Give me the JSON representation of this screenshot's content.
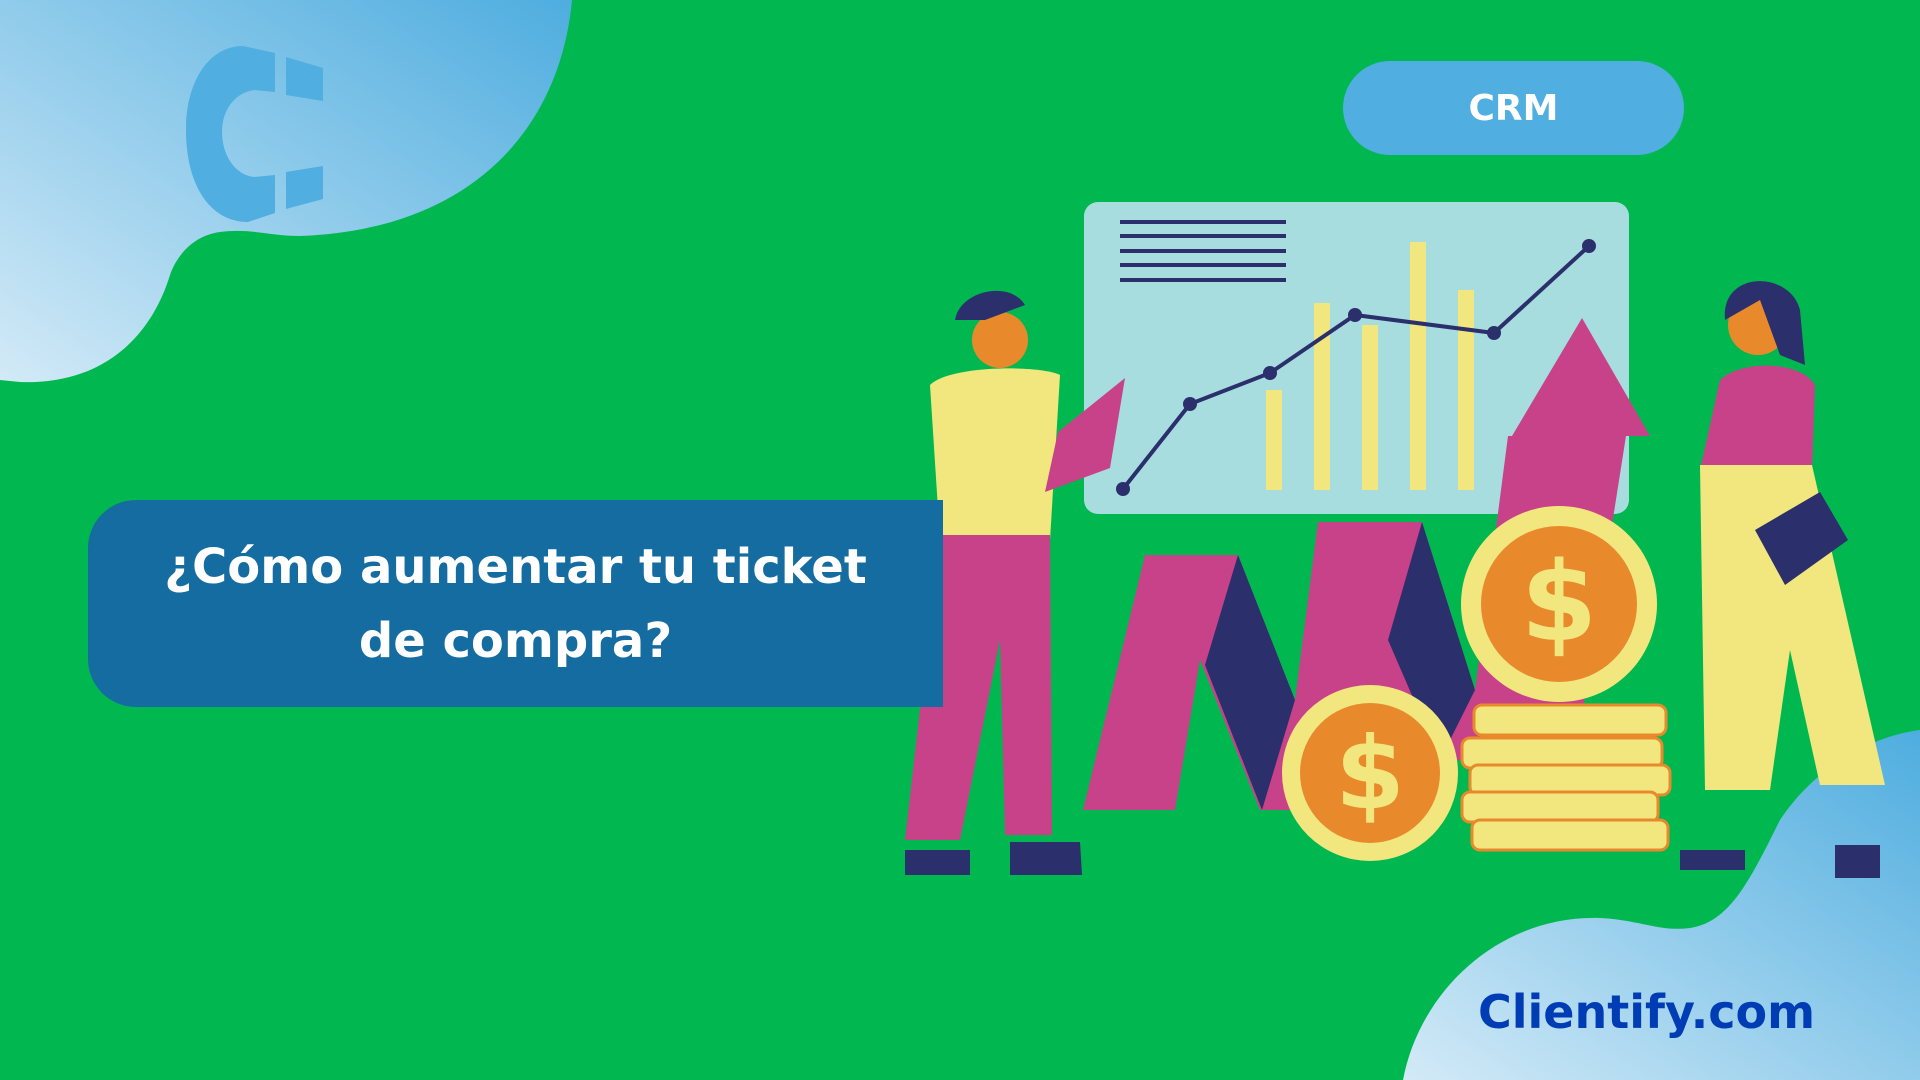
{
  "badge": {
    "label": "CRM"
  },
  "headline": {
    "text": "¿Cómo aumentar tu ticket de compra?"
  },
  "footer": {
    "brand": "Clientify.com"
  },
  "colors": {
    "background": "#00B84F",
    "badge": "#50AEE0",
    "headline_box": "#156CA0",
    "brand_text": "#003CB4",
    "logo": "#50AEE0"
  },
  "icons": {
    "logo": "clientify-logo-icon",
    "illustration": "sales-growth-illustration"
  }
}
